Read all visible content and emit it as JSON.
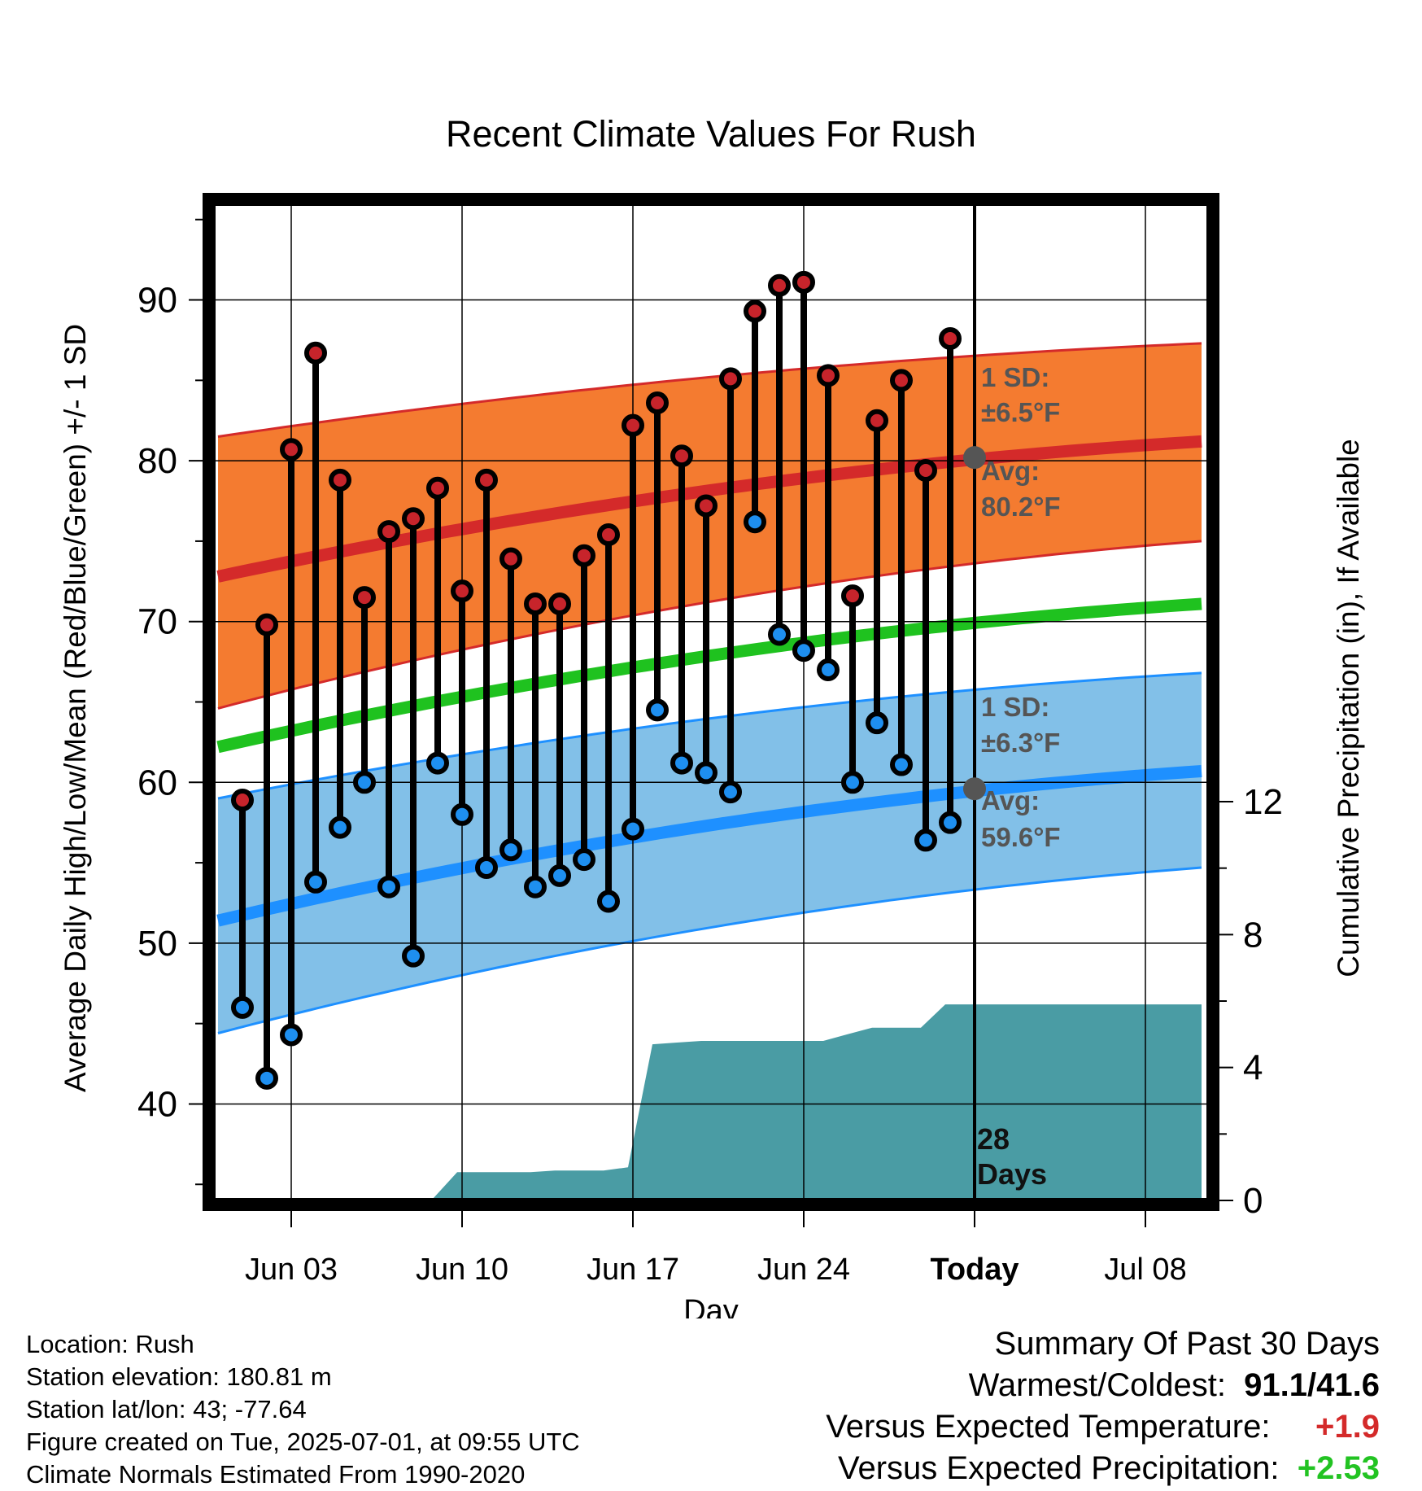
{
  "chart_data": {
    "type": "line",
    "title": "Recent Climate Values For Rush",
    "xlabel": "Day",
    "ylabel": "Average Daily High/Low/Mean (Red/Blue/Green) +/- 1 SD",
    "y2label": "Cumulative Precipitation (in), If Available",
    "ylim": [
      34,
      96
    ],
    "y2lim": [
      0,
      30
    ],
    "y_ticks": [
      40,
      50,
      60,
      70,
      80,
      90
    ],
    "y2_ticks": [
      0,
      4,
      8,
      12
    ],
    "x_tick_labels": [
      "Jun 03",
      "Jun 10",
      "Jun 17",
      "Jun 24",
      "Today",
      "Jul 08"
    ],
    "x_tick_days": [
      3,
      10,
      17,
      24,
      31,
      38
    ],
    "xlim": [
      -0.2,
      40.6
    ],
    "grid": true,
    "days": [
      1,
      2,
      3,
      4,
      5,
      6,
      7,
      8,
      9,
      10,
      11,
      12,
      13,
      14,
      15,
      16,
      17,
      18,
      19,
      20,
      21,
      22,
      23,
      24,
      25,
      26,
      27,
      28,
      29,
      30
    ],
    "highs": [
      58.9,
      69.8,
      80.7,
      86.7,
      78.8,
      71.5,
      75.6,
      76.4,
      78.3,
      71.9,
      78.8,
      73.9,
      71.1,
      71.1,
      74.1,
      75.4,
      82.2,
      83.6,
      80.3,
      77.2,
      85.1,
      89.3,
      90.9,
      91.1,
      85.3,
      71.6,
      82.5,
      85.0,
      79.4,
      87.6
    ],
    "lows": [
      46.0,
      41.6,
      44.3,
      53.8,
      57.2,
      60.0,
      53.5,
      49.2,
      61.2,
      58.0,
      54.7,
      55.8,
      53.5,
      54.2,
      55.2,
      52.6,
      57.1,
      64.5,
      61.2,
      60.6,
      59.4,
      76.2,
      69.2,
      68.2,
      67.0,
      60.0,
      63.7,
      61.1,
      56.4,
      57.5
    ],
    "normals": {
      "days": [
        0,
        40.3
      ],
      "avg_high": [
        72.8,
        81.2
      ],
      "avg_high_upper": [
        81.5,
        87.3
      ],
      "avg_high_lower": [
        64.6,
        75.0
      ],
      "avg_mean": [
        62.2,
        71.1
      ],
      "avg_low": [
        51.4,
        60.7
      ],
      "avg_low_upper": [
        59.0,
        66.8
      ],
      "avg_low_lower": [
        44.4,
        54.7
      ],
      "curvature": 0.55
    },
    "precip_cumulative": {
      "days": [
        -0.2,
        7.8,
        8.8,
        9.8,
        12.8,
        13.8,
        15.8,
        16.8,
        17.8,
        18.8,
        19.8,
        24.8,
        25.8,
        26.8,
        27.8,
        28.8,
        29.8,
        40.3
      ],
      "values": [
        0,
        0,
        0.05,
        0.85,
        0.85,
        0.9,
        0.9,
        1.0,
        4.7,
        4.75,
        4.8,
        4.8,
        5.0,
        5.2,
        5.2,
        5.2,
        5.9,
        5.9
      ]
    },
    "today_marker": {
      "day": 31,
      "label_line1": "28",
      "label_line2": "Days"
    },
    "annotations": {
      "high_sd_line1": "1 SD:",
      "high_sd_line2": "±6.5°F",
      "high_avg_line1": "Avg:",
      "high_avg_line2": "80.2°F",
      "low_sd_line1": "1 SD:",
      "low_sd_line2": "±6.3°F",
      "low_avg_line1": "Avg:",
      "low_avg_line2": "59.6°F",
      "high_today_avg": 80.2,
      "low_today_avg": 59.6
    },
    "colors": {
      "high_band": "#f47b30",
      "high_line": "#d42a2a",
      "high_dot": "#c7242b",
      "mean_line": "#1fc21f",
      "low_band": "#82c0e8",
      "low_line": "#1e90ff",
      "low_dot": "#1e8ff0",
      "precip": "#4a9ca4",
      "annotation": "#555555"
    }
  },
  "info": {
    "location": "Location: Rush",
    "elevation": "Station elevation: 180.81 m",
    "latlon": "Station lat/lon: 43; -77.64",
    "created": "Figure created on Tue, 2025-07-01, at 09:55 UTC",
    "normals": "Climate Normals Estimated From 1990-2020"
  },
  "summary": {
    "title": "Summary Of Past 30 Days",
    "warm_cold_label": "Warmest/Coldest:",
    "warm_cold_value": "91.1/41.6",
    "temp_label": "Versus Expected Temperature:",
    "temp_value": "+1.9",
    "temp_color": "#d42a2a",
    "precip_label": "Versus Expected Precipitation:",
    "precip_value": "+2.53",
    "precip_color": "#22c322"
  }
}
